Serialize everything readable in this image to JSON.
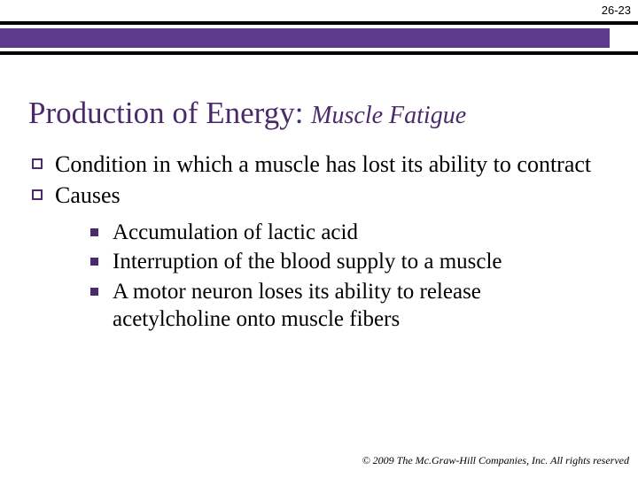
{
  "page_number": "26-23",
  "title_main": "Production of Energy:",
  "title_sub": "Muscle Fatigue",
  "colors": {
    "accent_purple": "#5e3a8a",
    "title_purple": "#4a2a6a",
    "black": "#000000",
    "background": "#ffffff"
  },
  "bullets_level1": [
    {
      "text": "Condition in which a muscle has lost its ability to contract"
    },
    {
      "text": "Causes"
    }
  ],
  "bullets_level2": [
    {
      "text": "Accumulation of lactic acid"
    },
    {
      "text": "Interruption of the blood supply to a muscle"
    },
    {
      "text": "A motor neuron loses its ability to release acetylcholine onto muscle fibers"
    }
  ],
  "copyright": "© 2009 The Mc.Graw-Hill Companies, Inc. All rights reserved"
}
